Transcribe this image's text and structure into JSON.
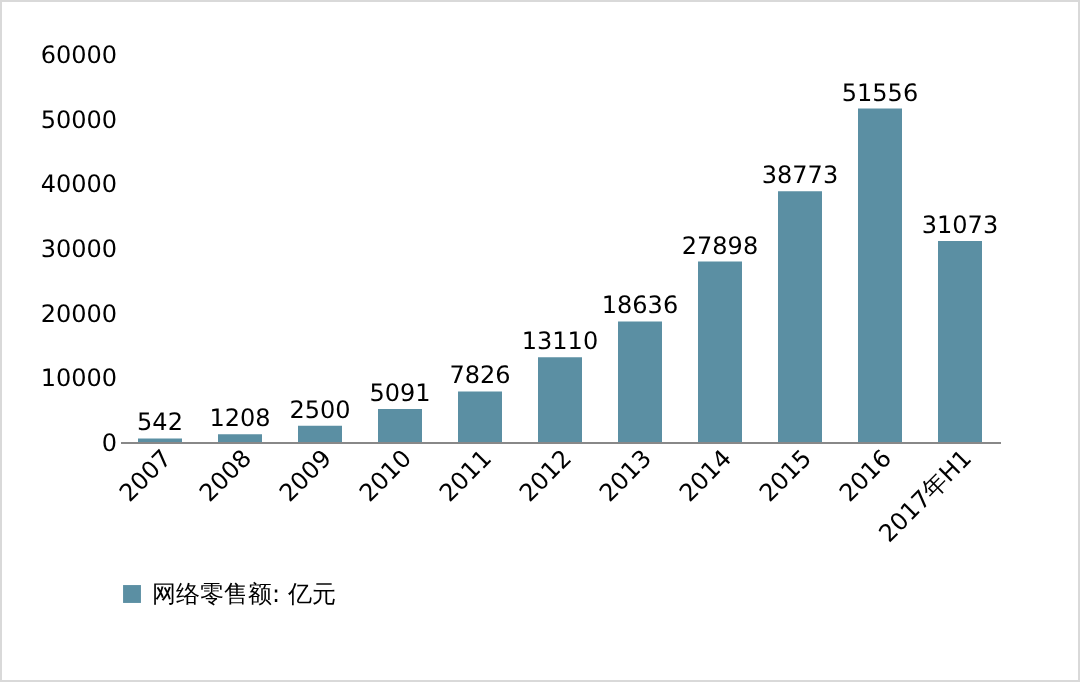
{
  "chart_data": {
    "type": "bar",
    "categories": [
      "2007",
      "2008",
      "2009",
      "2010",
      "2011",
      "2012",
      "2013",
      "2014",
      "2015",
      "2016",
      "2017年H1"
    ],
    "series": [
      {
        "name": "网络零售额: 亿元",
        "color": "#5b8fa3",
        "values": [
          542,
          1208,
          2500,
          5091,
          7826,
          13110,
          18636,
          27898,
          38773,
          51556,
          31073
        ]
      }
    ],
    "ylim": [
      0,
      60000
    ],
    "yticks": [
      0,
      10000,
      20000,
      30000,
      40000,
      50000,
      60000
    ],
    "grid": false,
    "legend": "bottom",
    "data_labels": true
  }
}
